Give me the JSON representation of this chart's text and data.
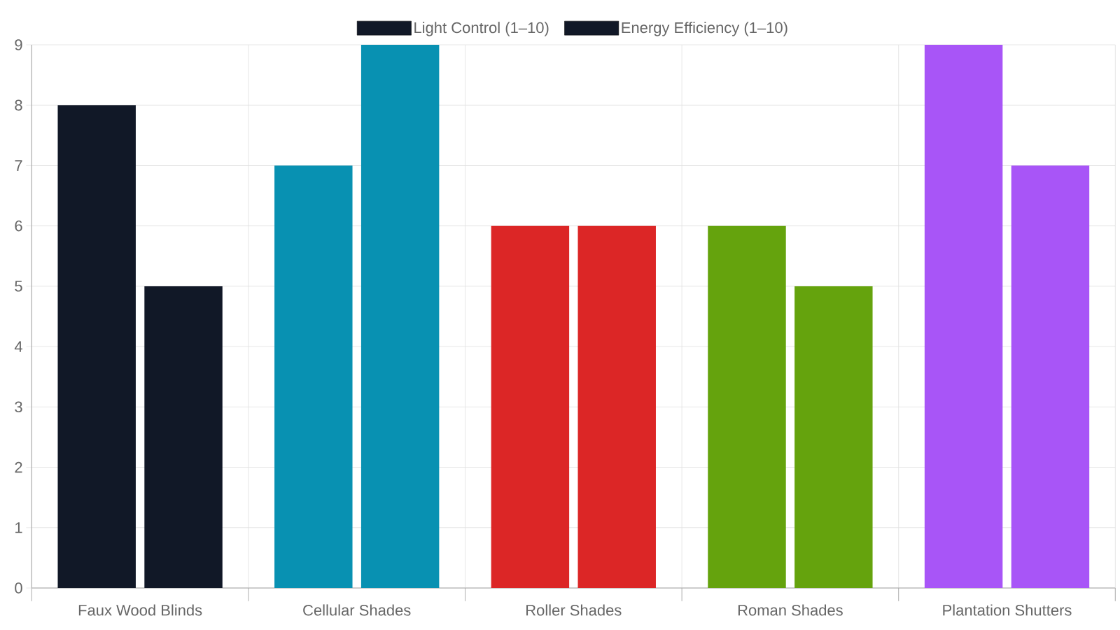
{
  "chart_data": {
    "type": "bar",
    "categories": [
      "Faux Wood Blinds",
      "Cellular Shades",
      "Roller Shades",
      "Roman Shades",
      "Plantation Shutters"
    ],
    "series": [
      {
        "name": "Light Control (1–10)",
        "colors": [
          "#111827",
          "#0891b2",
          "#dc2626",
          "#65a30d",
          "#a855f7"
        ],
        "values": [
          8,
          7,
          6,
          6,
          9
        ]
      },
      {
        "name": "Energy Efficiency (1–10)",
        "colors": [
          "#111827",
          "#0891b2",
          "#dc2626",
          "#65a30d",
          "#a855f7"
        ],
        "values": [
          5,
          9,
          6,
          5,
          7
        ]
      }
    ],
    "ylim": [
      0,
      9
    ],
    "yticks": [
      0,
      1,
      2,
      3,
      4,
      5,
      6,
      7,
      8,
      9
    ],
    "grid": true,
    "legend": "top"
  }
}
